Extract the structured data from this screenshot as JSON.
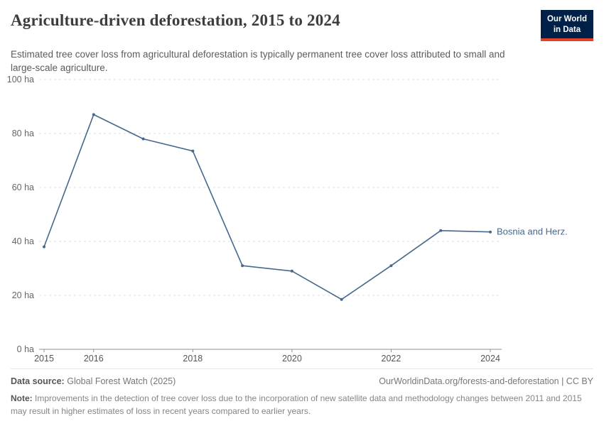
{
  "header": {
    "title": "Agriculture-driven deforestation, 2015 to 2024",
    "subtitle": "Estimated tree cover loss from agricultural deforestation is typically permanent tree cover loss attributed to small and large-scale agriculture.",
    "logo": {
      "line1": "Our World",
      "line2": "in Data"
    }
  },
  "chart_data": {
    "type": "line",
    "title": "Agriculture-driven deforestation, 2015 to 2024",
    "x": [
      2015,
      2016,
      2017,
      2018,
      2019,
      2020,
      2021,
      2022,
      2023,
      2024
    ],
    "series": [
      {
        "name": "Bosnia and Herz.",
        "values": [
          38,
          87,
          78,
          73.5,
          31,
          29,
          18.5,
          31,
          44,
          43.5
        ]
      }
    ],
    "xlabel": "",
    "ylabel": "",
    "unit": "ha",
    "ylim": [
      0,
      100
    ],
    "yticks": [
      0,
      20,
      40,
      60,
      80,
      100
    ],
    "xticks": [
      2015,
      2016,
      2018,
      2020,
      2022,
      2024
    ],
    "grid": "horizontal-dashed",
    "legend_position": "end-of-line-label"
  },
  "colors": {
    "line": "#45688C",
    "logo_bg": "#002147",
    "logo_accent": "#e0422e",
    "grid": "#dcdcdc",
    "axis": "#8f8f8f",
    "tick_text": "#666666",
    "xtick_text": "#555555"
  },
  "footer": {
    "source_label": "Data source:",
    "source_value": "Global Forest Watch (2025)",
    "citation": "OurWorldinData.org/forests-and-deforestation | CC BY",
    "note_label": "Note:",
    "note_text": "Improvements in the detection of tree cover loss due to the incorporation of new satellite data and methodology changes between 2011 and 2015 may result in higher estimates of loss in recent years compared to earlier years."
  }
}
